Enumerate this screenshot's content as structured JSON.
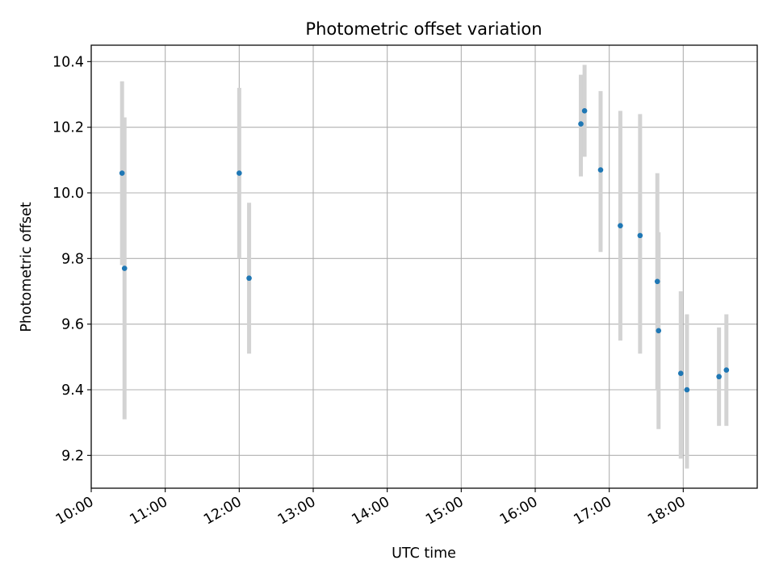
{
  "chart_data": {
    "type": "scatter",
    "title": "Photometric offset variation",
    "xlabel": "UTC time",
    "ylabel": "Photometric offset",
    "x_ticks": [
      "10:00",
      "11:00",
      "12:00",
      "13:00",
      "14:00",
      "15:00",
      "16:00",
      "17:00",
      "18:00"
    ],
    "y_ticks": [
      "9.2",
      "9.4",
      "9.6",
      "9.8",
      "10.0",
      "10.2",
      "10.4"
    ],
    "xlim": [
      "10:00",
      "19:00"
    ],
    "ylim": [
      9.1,
      10.45
    ],
    "grid": true,
    "colors": {
      "point": "#1f77b4",
      "errorbar": "#d3d3d3",
      "grid": "#b0b0b0"
    },
    "series": [
      {
        "points": [
          {
            "x": "10:25",
            "y": 10.06,
            "err_low": 9.78,
            "err_high": 10.34
          },
          {
            "x": "10:27",
            "y": 9.77,
            "err_low": 9.31,
            "err_high": 10.23
          },
          {
            "x": "12:00",
            "y": 10.06,
            "err_low": 9.8,
            "err_high": 10.32
          },
          {
            "x": "12:08",
            "y": 9.74,
            "err_low": 9.51,
            "err_high": 9.97
          },
          {
            "x": "16:37",
            "y": 10.21,
            "err_low": 10.05,
            "err_high": 10.36
          },
          {
            "x": "16:40",
            "y": 10.25,
            "err_low": 10.11,
            "err_high": 10.39
          },
          {
            "x": "16:53",
            "y": 10.07,
            "err_low": 9.82,
            "err_high": 10.31
          },
          {
            "x": "17:09",
            "y": 9.9,
            "err_low": 9.55,
            "err_high": 10.25
          },
          {
            "x": "17:25",
            "y": 9.87,
            "err_low": 9.51,
            "err_high": 10.24
          },
          {
            "x": "17:39",
            "y": 9.73,
            "err_low": 9.4,
            "err_high": 10.06
          },
          {
            "x": "17:40",
            "y": 9.58,
            "err_low": 9.28,
            "err_high": 9.88
          },
          {
            "x": "17:58",
            "y": 9.45,
            "err_low": 9.19,
            "err_high": 9.7
          },
          {
            "x": "18:03",
            "y": 9.4,
            "err_low": 9.16,
            "err_high": 9.63
          },
          {
            "x": "18:29",
            "y": 9.44,
            "err_low": 9.29,
            "err_high": 9.59
          },
          {
            "x": "18:35",
            "y": 9.46,
            "err_low": 9.29,
            "err_high": 9.63
          }
        ]
      }
    ]
  }
}
